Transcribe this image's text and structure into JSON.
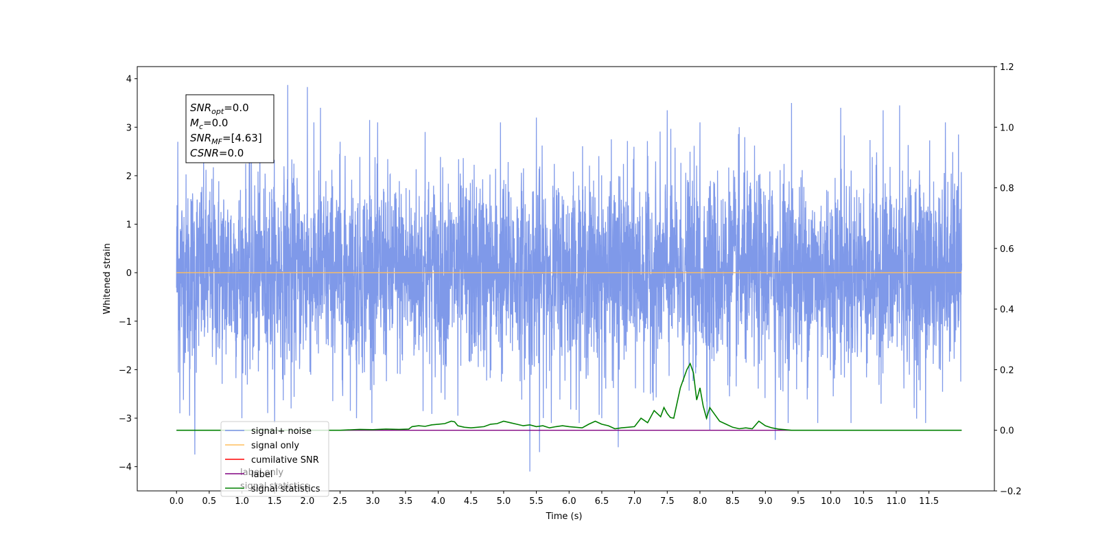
{
  "chart_data": {
    "type": "line",
    "xlabel": "Time (s)",
    "ylabel": "Whitened strain",
    "xlim": [
      -0.6,
      12.5
    ],
    "ylim": [
      -4.5,
      4.25
    ],
    "y2lim": [
      -0.2,
      1.2
    ],
    "x_ticks": [
      0.0,
      0.5,
      1.0,
      1.5,
      2.0,
      2.5,
      3.0,
      3.5,
      4.0,
      4.5,
      5.0,
      5.5,
      6.0,
      6.5,
      7.0,
      7.5,
      8.0,
      8.5,
      9.0,
      9.5,
      10.0,
      10.5,
      11.0,
      11.5
    ],
    "x_tick_labels": [
      "0.0",
      "0.5",
      "1.0",
      "1.5",
      "2.0",
      "2.5",
      "3.0",
      "3.5",
      "4.0",
      "4.5",
      "5.0",
      "5.5",
      "6.0",
      "6.5",
      "7.0",
      "7.5",
      "8.0",
      "8.5",
      "9.0",
      "9.5",
      "10.0",
      "10.5",
      "11.0",
      "11.5"
    ],
    "y_ticks": [
      -4,
      -3,
      -2,
      -1,
      0,
      1,
      2,
      3,
      4
    ],
    "y_tick_labels": [
      "−4",
      "−3",
      "−2",
      "−1",
      "0",
      "1",
      "2",
      "3",
      "4"
    ],
    "y2_ticks": [
      -0.2,
      0.0,
      0.2,
      0.4,
      0.6,
      0.8,
      1.0,
      1.2
    ],
    "y2_tick_labels": [
      "−0.2",
      "0.0",
      "0.2",
      "0.4",
      "0.6",
      "0.8",
      "1.0",
      "1.2"
    ],
    "grid": false,
    "legend_position": "lower-left",
    "legend": [
      {
        "label": "signal+ noise",
        "color": "#7893e8"
      },
      {
        "label": "signal only",
        "color": "#ffbe5c"
      },
      {
        "label": "cumilative SNR",
        "color": "#ff0000"
      },
      {
        "label": "label",
        "color": "#800080"
      },
      {
        "label": "signal statistics",
        "color": "#008000"
      }
    ],
    "hidden_legend_text": [
      {
        "label": "label only"
      },
      {
        "label": "signal statistics"
      }
    ],
    "annotation": {
      "lines": [
        {
          "sym": "SNR",
          "sub": "opt",
          "value": "=0.0"
        },
        {
          "sym": "M",
          "sub": "c",
          "value": "=0.0"
        },
        {
          "sym": "SNR",
          "sub": "MF",
          "value": "=[4.63]"
        },
        {
          "sym": "CSNR",
          "sub": "",
          "value": "=0.0"
        }
      ]
    },
    "series": [
      {
        "name": "signal+ noise",
        "axis": "left",
        "color": "#7893e8",
        "kind": "noise",
        "x_range": [
          0.0,
          12.0
        ],
        "sigma": 1.0,
        "spikes": [
          {
            "x": 0.02,
            "y": 2.7
          },
          {
            "x": 0.05,
            "y": -2.9
          },
          {
            "x": 0.28,
            "y": -3.75
          },
          {
            "x": 0.2,
            "y": -2.95
          },
          {
            "x": 1.0,
            "y": -3.0
          },
          {
            "x": 1.7,
            "y": 3.87
          },
          {
            "x": 1.75,
            "y": -2.8
          },
          {
            "x": 2.0,
            "y": 3.83
          },
          {
            "x": 2.2,
            "y": 3.4
          },
          {
            "x": 2.5,
            "y": 2.7
          },
          {
            "x": 2.75,
            "y": -3.0
          },
          {
            "x": 2.95,
            "y": 3.15
          },
          {
            "x": 3.8,
            "y": 2.9
          },
          {
            "x": 4.3,
            "y": -2.95
          },
          {
            "x": 4.95,
            "y": 3.1
          },
          {
            "x": 5.4,
            "y": -4.1
          },
          {
            "x": 5.55,
            "y": -3.7
          },
          {
            "x": 5.5,
            "y": 3.2
          },
          {
            "x": 6.5,
            "y": -3.0
          },
          {
            "x": 6.75,
            "y": -3.6
          },
          {
            "x": 7.5,
            "y": 3.35
          },
          {
            "x": 8.0,
            "y": 3.1
          },
          {
            "x": 8.15,
            "y": -3.25
          },
          {
            "x": 8.6,
            "y": 3.0
          },
          {
            "x": 9.15,
            "y": -3.45
          },
          {
            "x": 9.4,
            "y": 3.5
          },
          {
            "x": 9.8,
            "y": -3.1
          },
          {
            "x": 10.15,
            "y": 3.4
          },
          {
            "x": 10.8,
            "y": 3.35
          },
          {
            "x": 11.05,
            "y": 3.45
          },
          {
            "x": 11.45,
            "y": -3.1
          },
          {
            "x": 11.75,
            "y": 3.1
          },
          {
            "x": 11.95,
            "y": 2.85
          }
        ]
      },
      {
        "name": "signal only",
        "axis": "left",
        "color": "#ffbe5c",
        "x": [
          0.0,
          12.0
        ],
        "y": [
          0.0,
          0.0
        ]
      },
      {
        "name": "label",
        "axis": "right",
        "color": "#800080",
        "x": [
          0.0,
          12.0
        ],
        "y": [
          0.0,
          0.0
        ]
      },
      {
        "name": "signal statistics",
        "axis": "right",
        "color": "#008000",
        "x": [
          0.0,
          2.5,
          2.8,
          3.0,
          3.2,
          3.4,
          3.55,
          3.6,
          3.7,
          3.8,
          3.9,
          4.0,
          4.1,
          4.2,
          4.25,
          4.3,
          4.4,
          4.5,
          4.6,
          4.7,
          4.8,
          4.9,
          5.0,
          5.1,
          5.2,
          5.3,
          5.4,
          5.5,
          5.6,
          5.7,
          5.8,
          5.9,
          6.0,
          6.1,
          6.2,
          6.3,
          6.4,
          6.5,
          6.6,
          6.7,
          6.8,
          6.9,
          7.0,
          7.1,
          7.2,
          7.3,
          7.4,
          7.45,
          7.5,
          7.55,
          7.6,
          7.7,
          7.8,
          7.85,
          7.9,
          7.95,
          8.0,
          8.05,
          8.1,
          8.15,
          8.2,
          8.3,
          8.4,
          8.5,
          8.6,
          8.7,
          8.8,
          8.9,
          9.0,
          9.1,
          9.2,
          9.3,
          9.4,
          9.5,
          12.0
        ],
        "y": [
          0.0,
          0.0,
          0.003,
          0.002,
          0.004,
          0.003,
          0.004,
          0.012,
          0.015,
          0.013,
          0.018,
          0.02,
          0.022,
          0.03,
          0.028,
          0.015,
          0.01,
          0.008,
          0.01,
          0.012,
          0.02,
          0.022,
          0.03,
          0.025,
          0.02,
          0.015,
          0.018,
          0.012,
          0.015,
          0.008,
          0.012,
          0.015,
          0.012,
          0.01,
          0.008,
          0.02,
          0.03,
          0.02,
          0.015,
          0.005,
          0.008,
          0.01,
          0.012,
          0.04,
          0.025,
          0.065,
          0.045,
          0.075,
          0.055,
          0.042,
          0.04,
          0.14,
          0.2,
          0.22,
          0.19,
          0.1,
          0.14,
          0.08,
          0.04,
          0.075,
          0.06,
          0.03,
          0.02,
          0.01,
          0.005,
          0.008,
          0.005,
          0.03,
          0.015,
          0.008,
          0.004,
          0.002,
          0.0,
          0.0,
          0.0
        ]
      }
    ]
  }
}
